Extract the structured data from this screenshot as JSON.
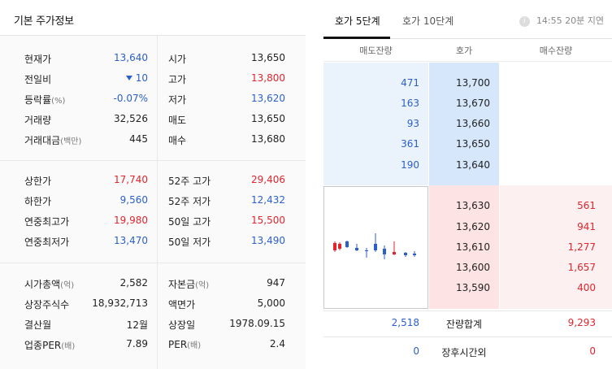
{
  "left_panel": {
    "title": "기본 주가정보",
    "section1": [
      {
        "k1": "현재가",
        "k1u": "",
        "v1": "13,640",
        "k2": "시가",
        "k2u": "",
        "v2": "13,650"
      },
      {
        "k1": "전일비",
        "k1u": "",
        "v1": "10",
        "k2": "고가",
        "k2u": "",
        "v2": "13,800"
      },
      {
        "k1": "등락률",
        "k1u": "(%)",
        "v1": "-0.07%",
        "k2": "저가",
        "k2u": "",
        "v2": "13,620"
      },
      {
        "k1": "거래량",
        "k1u": "",
        "v1": "32,526",
        "k2": "매도",
        "k2u": "",
        "v2": "13,650"
      },
      {
        "k1": "거래대금",
        "k1u": "(백만)",
        "v1": "445",
        "k2": "매수",
        "k2u": "",
        "v2": "13,680"
      }
    ],
    "section2": [
      {
        "k1": "상한가",
        "k1u": "",
        "v1": "17,740",
        "k2": "52주 고가",
        "k2u": "",
        "v2": "29,406"
      },
      {
        "k1": "하한가",
        "k1u": "",
        "v1": "9,560",
        "k2": "52주 저가",
        "k2u": "",
        "v2": "12,432"
      },
      {
        "k1": "연중최고가",
        "k1u": "",
        "v1": "19,980",
        "k2": "50일 고가",
        "k2u": "",
        "v2": "15,500"
      },
      {
        "k1": "연중최저가",
        "k1u": "",
        "v1": "13,470",
        "k2": "50일 저가",
        "k2u": "",
        "v2": "13,490"
      }
    ],
    "section3": [
      {
        "k1": "시가총액",
        "k1u": "(억)",
        "v1": "2,582",
        "k2": "자본금",
        "k2u": "(억)",
        "v2": "947"
      },
      {
        "k1": "상장주식수",
        "k1u": "",
        "v1": "18,932,713",
        "k2": "액면가",
        "k2u": "",
        "v2": "5,000"
      },
      {
        "k1": "결산월",
        "k1u": "",
        "v1": "12월",
        "k2": "상장일",
        "k2u": "",
        "v2": "1978.09.15"
      },
      {
        "k1": "업종PER",
        "k1u": "(배)",
        "v1": "7.89",
        "k2": "PER",
        "k2u": "(배)",
        "v2": "2.4"
      }
    ]
  },
  "right_panel": {
    "tab1": "호가 5단계",
    "tab2": "호가 10단계",
    "delay": "14:55 20분 지연",
    "info_icon": "i",
    "col_ask": "매도잔량",
    "col_price": "호가",
    "col_bid": "매수잔량",
    "asks": [
      {
        "qty": "471",
        "price": "13,700"
      },
      {
        "qty": "163",
        "price": "13,670"
      },
      {
        "qty": "93",
        "price": "13,660"
      },
      {
        "qty": "361",
        "price": "13,650"
      },
      {
        "qty": "190",
        "price": "13,640"
      }
    ],
    "bids": [
      {
        "price": "13,630",
        "qty": "561"
      },
      {
        "price": "13,620",
        "qty": "941"
      },
      {
        "price": "13,610",
        "qty": "1,277"
      },
      {
        "price": "13,600",
        "qty": "1,657"
      },
      {
        "price": "13,590",
        "qty": "400"
      }
    ],
    "total_ask": "2,518",
    "total_label": "잔량합계",
    "total_bid": "9,293",
    "after_ask": "0",
    "after_label": "장후시간외",
    "after_bid": "0"
  },
  "colors": {
    "up": "#e0252e",
    "down": "#2b5fc9"
  }
}
